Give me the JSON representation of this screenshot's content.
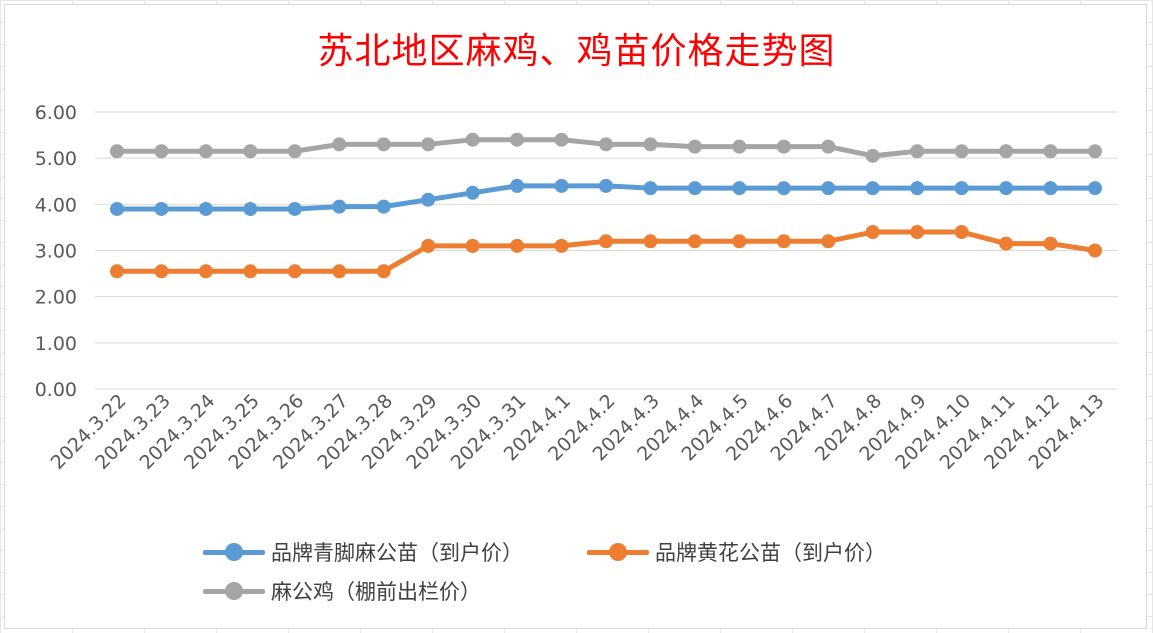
{
  "chart_data": {
    "type": "line",
    "title": "苏北地区麻鸡、鸡苗价格走势图",
    "xlabel": "",
    "ylabel": "",
    "ylim": [
      0,
      6
    ],
    "yticks": [
      "0.00",
      "1.00",
      "2.00",
      "3.00",
      "4.00",
      "5.00",
      "6.00"
    ],
    "grid": true,
    "legend_position": "bottom",
    "categories": [
      "2024.3.22",
      "2024.3.23",
      "2024.3.24",
      "2024.3.25",
      "2024.3.26",
      "2024.3.27",
      "2024.3.28",
      "2024.3.29",
      "2024.3.30",
      "2024.3.31",
      "2024.4.1",
      "2024.4.2",
      "2024.4.3",
      "2024.4.4",
      "2024.4.5",
      "2024.4.6",
      "2024.4.7",
      "2024.4.8",
      "2024.4.9",
      "2024.4.10",
      "2024.4.11",
      "2024.4.12",
      "2024.4.13"
    ],
    "series": [
      {
        "name": "品牌青脚麻公苗（到户价）",
        "color": "#5b9bd5",
        "values": [
          3.9,
          3.9,
          3.9,
          3.9,
          3.9,
          3.95,
          3.95,
          4.1,
          4.25,
          4.4,
          4.4,
          4.4,
          4.35,
          4.35,
          4.35,
          4.35,
          4.35,
          4.35,
          4.35,
          4.35,
          4.35,
          4.35,
          4.35
        ]
      },
      {
        "name": "品牌黄花公苗（到户价）",
        "color": "#ed7d31",
        "values": [
          2.55,
          2.55,
          2.55,
          2.55,
          2.55,
          2.55,
          2.55,
          3.1,
          3.1,
          3.1,
          3.1,
          3.2,
          3.2,
          3.2,
          3.2,
          3.2,
          3.2,
          3.4,
          3.4,
          3.4,
          3.15,
          3.15,
          3.0
        ]
      },
      {
        "name": "麻公鸡（棚前出栏价）",
        "color": "#a5a5a5",
        "values": [
          5.15,
          5.15,
          5.15,
          5.15,
          5.15,
          5.3,
          5.3,
          5.3,
          5.4,
          5.4,
          5.4,
          5.3,
          5.3,
          5.25,
          5.25,
          5.25,
          5.25,
          5.05,
          5.15,
          5.15,
          5.15,
          5.15,
          5.15
        ]
      }
    ]
  }
}
